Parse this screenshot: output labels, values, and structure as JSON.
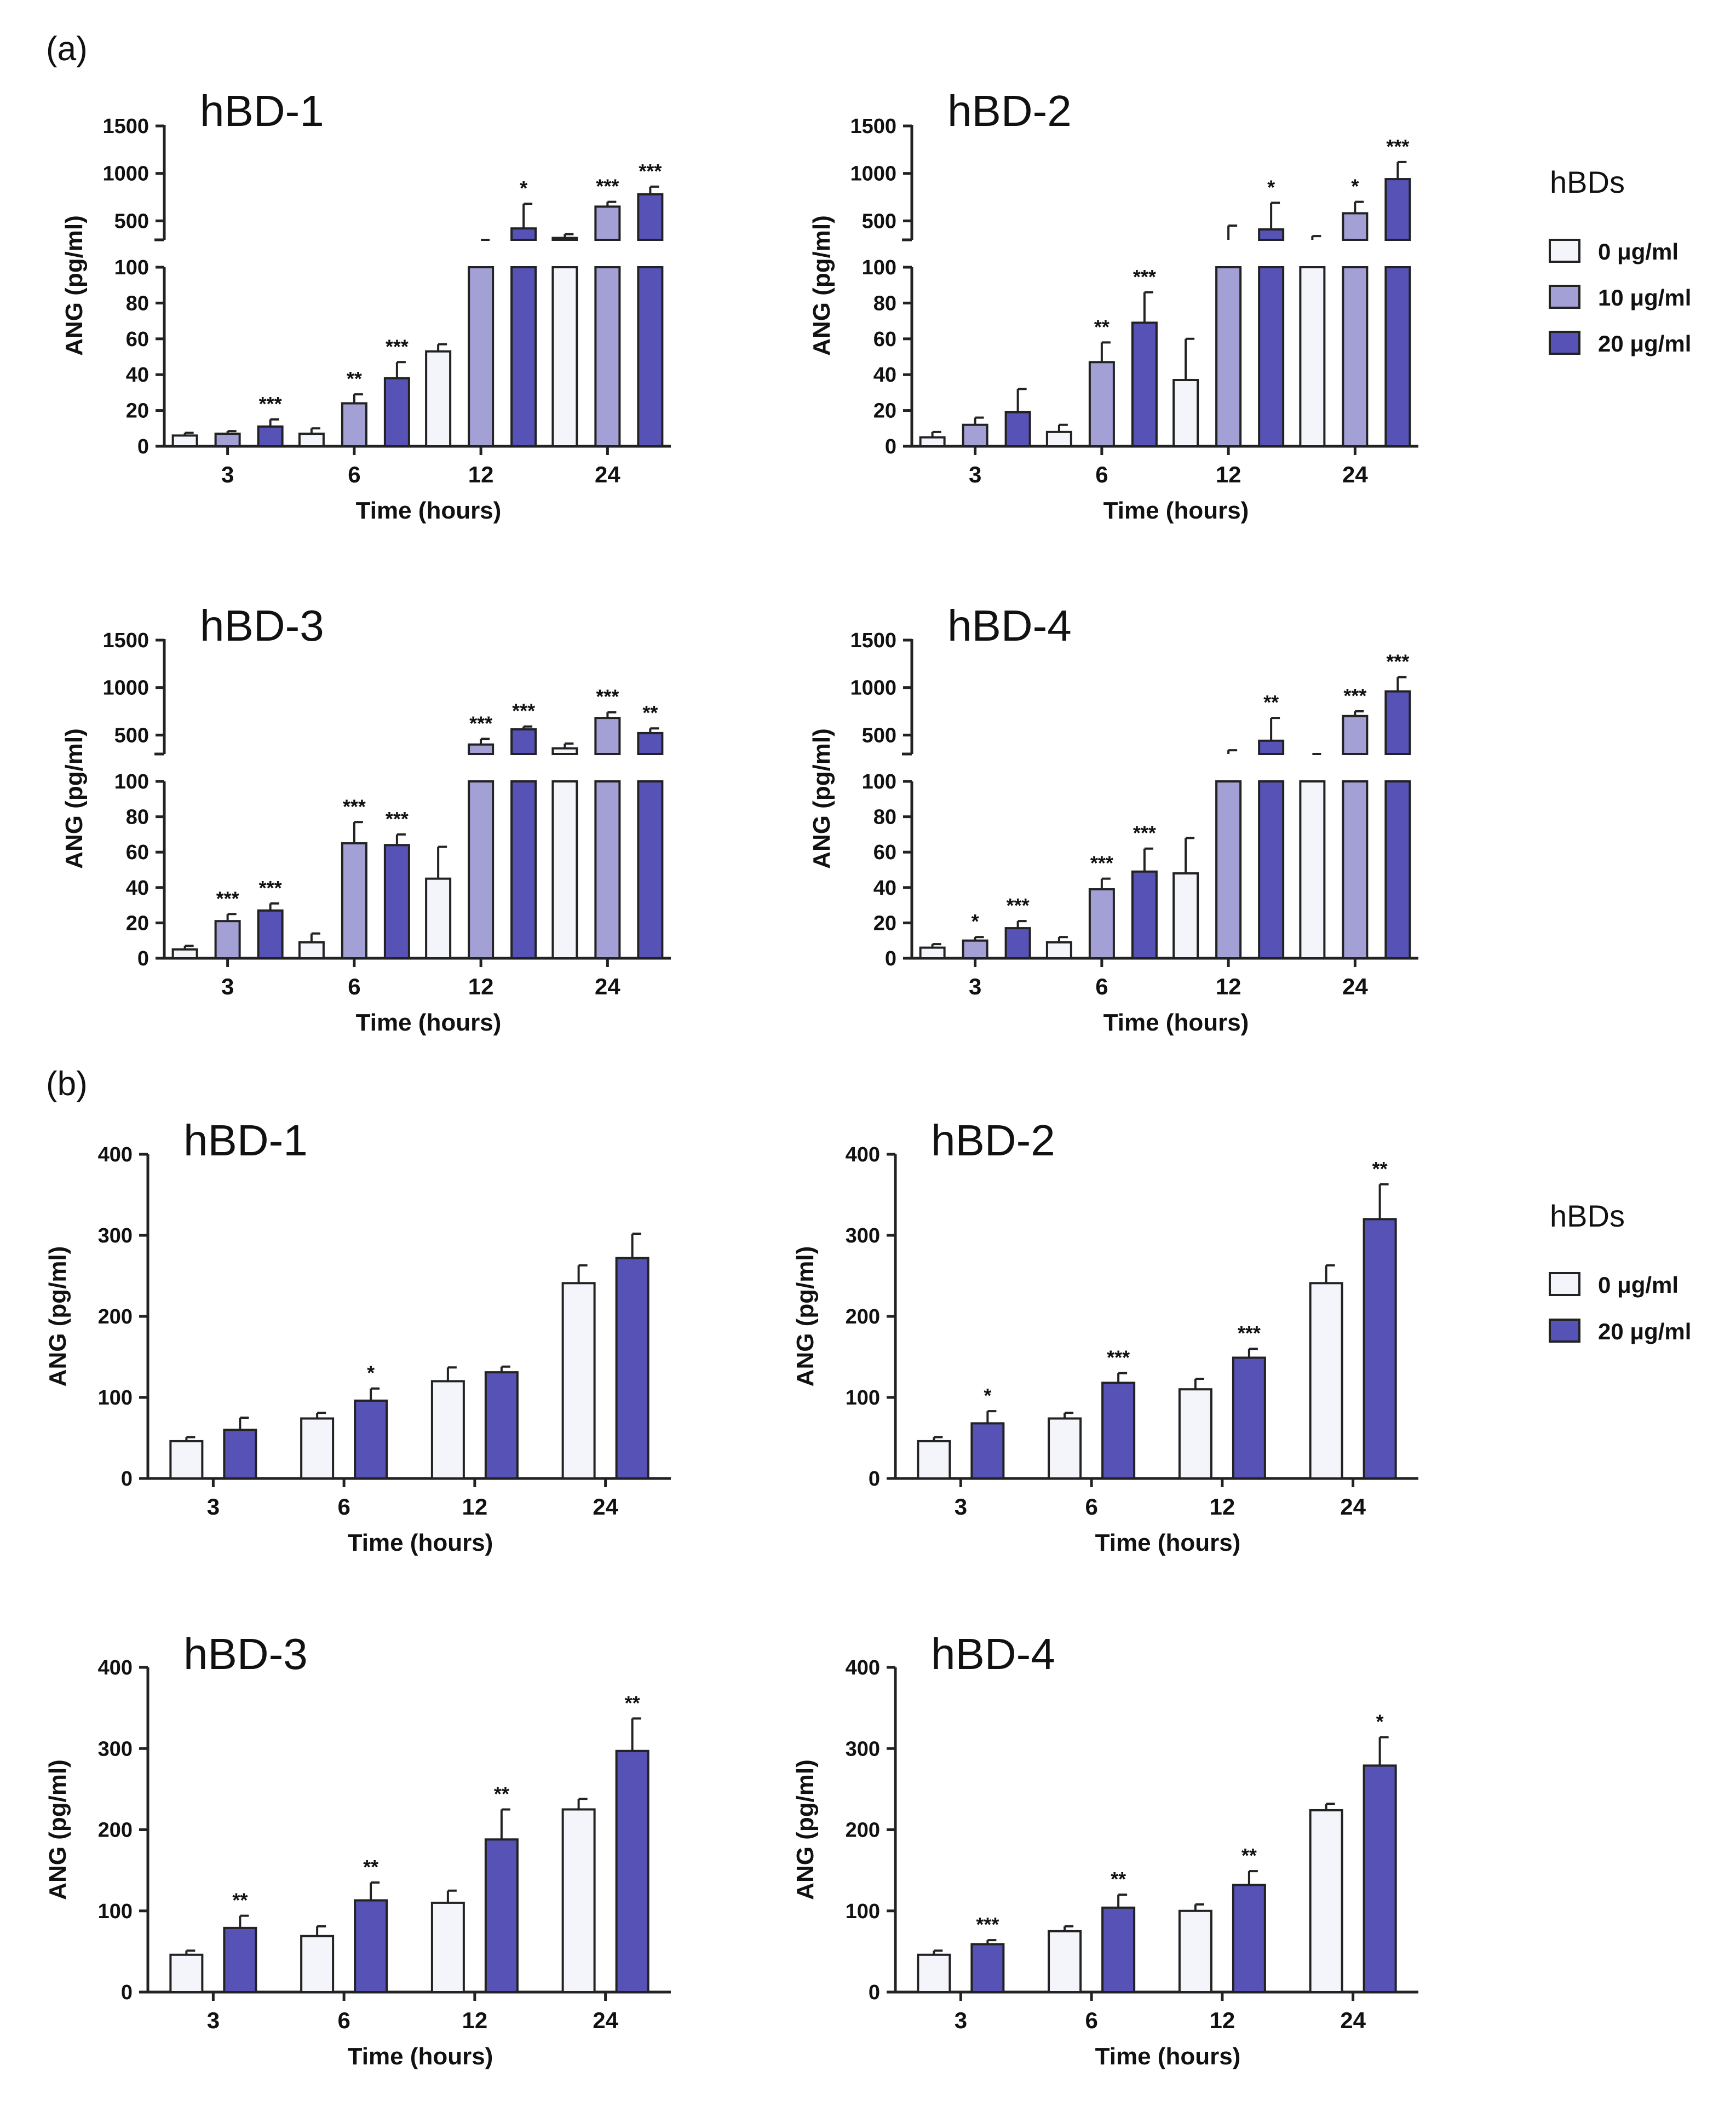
{
  "panels": [
    {
      "label": "(a)",
      "legend": {
        "title": "hBDs",
        "entries": [
          "0 μg/ml",
          "10 μg/ml",
          "20 μg/ml"
        ]
      }
    },
    {
      "label": "(b)",
      "legend": {
        "title": "hBDs",
        "entries": [
          "0 μg/ml",
          "20 μg/ml"
        ]
      }
    }
  ],
  "colors": {
    "0 μg/ml": "#f4f4fb",
    "10 μg/ml": "#a3a0d6",
    "20 μg/ml": "#5652b6",
    "edge": "#222222"
  },
  "chart_data": [
    {
      "type": "bar",
      "panel": "(a)",
      "title": "hBD-1",
      "categories": [
        "3",
        "6",
        "12",
        "24"
      ],
      "xlabel": "Time (hours)",
      "ylabel": "ANG (pg/ml)",
      "broken_axis": {
        "lower_ticks": [
          "0",
          "20",
          "40",
          "60",
          "80",
          "100"
        ],
        "upper_ticks": [
          "500",
          "1000",
          "1500"
        ],
        "lower_range": [
          0,
          100
        ],
        "upper_range": [
          300,
          1500
        ]
      },
      "series": [
        {
          "name": "0 μg/ml",
          "values": [
            6,
            7,
            53,
            320
          ],
          "errors": [
            1.5,
            3,
            4,
            40
          ],
          "sig": [
            "",
            "",
            "",
            ""
          ]
        },
        {
          "name": "10 μg/ml",
          "values": [
            7,
            24,
            140,
            650
          ],
          "errors": [
            1.5,
            5,
            70,
            50
          ],
          "sig": [
            "",
            "**",
            "",
            "***"
          ]
        },
        {
          "name": "20 μg/ml",
          "values": [
            11,
            38,
            420,
            780
          ],
          "errors": [
            4,
            9,
            260,
            80
          ],
          "sig": [
            "***",
            "***",
            "*",
            "***"
          ]
        }
      ]
    },
    {
      "type": "bar",
      "panel": "(a)",
      "title": "hBD-2",
      "categories": [
        "3",
        "6",
        "12",
        "24"
      ],
      "xlabel": "Time (hours)",
      "ylabel": "ANG (pg/ml)",
      "broken_axis": {
        "lower_ticks": [
          "0",
          "20",
          "40",
          "60",
          "80",
          "100"
        ],
        "upper_ticks": [
          "500",
          "1000",
          "1500"
        ],
        "lower_range": [
          0,
          100
        ],
        "upper_range": [
          300,
          1500
        ]
      },
      "series": [
        {
          "name": "0 μg/ml",
          "values": [
            5,
            8,
            37,
            300
          ],
          "errors": [
            3,
            4,
            23,
            40
          ],
          "sig": [
            "",
            "",
            "",
            ""
          ]
        },
        {
          "name": "10 μg/ml",
          "values": [
            12,
            47,
            300,
            580
          ],
          "errors": [
            4,
            11,
            150,
            120
          ],
          "sig": [
            "",
            "**",
            "",
            "*"
          ]
        },
        {
          "name": "20 μg/ml",
          "values": [
            19,
            69,
            410,
            940
          ],
          "errors": [
            13,
            17,
            280,
            180
          ],
          "sig": [
            "",
            "***",
            "*",
            "***"
          ]
        }
      ]
    },
    {
      "type": "bar",
      "panel": "(a)",
      "title": "hBD-3",
      "categories": [
        "3",
        "6",
        "12",
        "24"
      ],
      "xlabel": "Time (hours)",
      "ylabel": "ANG (pg/ml)",
      "broken_axis": {
        "lower_ticks": [
          "0",
          "20",
          "40",
          "60",
          "80",
          "100"
        ],
        "upper_ticks": [
          "500",
          "1000",
          "1500"
        ],
        "lower_range": [
          0,
          100
        ],
        "upper_range": [
          300,
          1500
        ]
      },
      "series": [
        {
          "name": "0 μg/ml",
          "values": [
            5,
            9,
            45,
            360
          ],
          "errors": [
            2,
            5,
            18,
            50
          ],
          "sig": [
            "",
            "",
            "",
            ""
          ]
        },
        {
          "name": "10 μg/ml",
          "values": [
            21,
            65,
            400,
            680
          ],
          "errors": [
            4,
            12,
            60,
            60
          ],
          "sig": [
            "***",
            "***",
            "***",
            "***"
          ]
        },
        {
          "name": "20 μg/ml",
          "values": [
            27,
            64,
            560,
            520
          ],
          "errors": [
            4,
            6,
            30,
            50
          ],
          "sig": [
            "***",
            "***",
            "***",
            "**"
          ]
        }
      ]
    },
    {
      "type": "bar",
      "panel": "(a)",
      "title": "hBD-4",
      "categories": [
        "3",
        "6",
        "12",
        "24"
      ],
      "xlabel": "Time (hours)",
      "ylabel": "ANG (pg/ml)",
      "broken_axis": {
        "lower_ticks": [
          "0",
          "20",
          "40",
          "60",
          "80",
          "100"
        ],
        "upper_ticks": [
          "500",
          "1000",
          "1500"
        ],
        "lower_range": [
          0,
          100
        ],
        "upper_range": [
          300,
          1500
        ]
      },
      "series": [
        {
          "name": "0 μg/ml",
          "values": [
            6,
            9,
            48,
            200
          ],
          "errors": [
            2,
            3,
            20,
            60
          ],
          "sig": [
            "",
            "",
            "",
            ""
          ]
        },
        {
          "name": "10 μg/ml",
          "values": [
            10,
            39,
            240,
            700
          ],
          "errors": [
            2,
            6,
            100,
            50
          ],
          "sig": [
            "*",
            "***",
            "",
            "***"
          ]
        },
        {
          "name": "20 μg/ml",
          "values": [
            17,
            49,
            440,
            960
          ],
          "errors": [
            4,
            13,
            240,
            150
          ],
          "sig": [
            "***",
            "***",
            "**",
            "***"
          ]
        }
      ]
    },
    {
      "type": "bar",
      "panel": "(b)",
      "title": "hBD-1",
      "categories": [
        "3",
        "6",
        "12",
        "24"
      ],
      "xlabel": "Time (hours)",
      "ylabel": "ANG (pg/ml)",
      "ylim": [
        0,
        400
      ],
      "yticks": [
        "0",
        "100",
        "200",
        "300",
        "400"
      ],
      "series": [
        {
          "name": "0 μg/ml",
          "values": [
            46,
            74,
            120,
            241
          ],
          "errors": [
            5,
            7,
            17,
            22
          ],
          "sig": [
            "",
            "",
            "",
            ""
          ]
        },
        {
          "name": "20 μg/ml",
          "values": [
            60,
            96,
            131,
            272
          ],
          "errors": [
            15,
            15,
            7,
            30
          ],
          "sig": [
            "",
            "*",
            "",
            ""
          ]
        }
      ]
    },
    {
      "type": "bar",
      "panel": "(b)",
      "title": "hBD-2",
      "categories": [
        "3",
        "6",
        "12",
        "24"
      ],
      "xlabel": "Time (hours)",
      "ylabel": "ANG (pg/ml)",
      "ylim": [
        0,
        400
      ],
      "yticks": [
        "0",
        "100",
        "200",
        "300",
        "400"
      ],
      "series": [
        {
          "name": "0 μg/ml",
          "values": [
            46,
            74,
            110,
            241
          ],
          "errors": [
            5,
            7,
            13,
            22
          ],
          "sig": [
            "",
            "",
            "",
            ""
          ]
        },
        {
          "name": "20 μg/ml",
          "values": [
            68,
            118,
            149,
            320
          ],
          "errors": [
            15,
            12,
            11,
            43
          ],
          "sig": [
            "*",
            "***",
            "***",
            "**"
          ]
        }
      ]
    },
    {
      "type": "bar",
      "panel": "(b)",
      "title": "hBD-3",
      "categories": [
        "3",
        "6",
        "12",
        "24"
      ],
      "xlabel": "Time (hours)",
      "ylabel": "ANG (pg/ml)",
      "ylim": [
        0,
        400
      ],
      "yticks": [
        "0",
        "100",
        "200",
        "300",
        "400"
      ],
      "series": [
        {
          "name": "0 μg/ml",
          "values": [
            46,
            69,
            110,
            225
          ],
          "errors": [
            5,
            12,
            15,
            13
          ],
          "sig": [
            "",
            "",
            "",
            ""
          ]
        },
        {
          "name": "20 μg/ml",
          "values": [
            79,
            113,
            188,
            297
          ],
          "errors": [
            15,
            22,
            37,
            40
          ],
          "sig": [
            "**",
            "**",
            "**",
            "**"
          ]
        }
      ]
    },
    {
      "type": "bar",
      "panel": "(b)",
      "title": "hBD-4",
      "categories": [
        "3",
        "6",
        "12",
        "24"
      ],
      "xlabel": "Time (hours)",
      "ylabel": "ANG (pg/ml)",
      "ylim": [
        0,
        400
      ],
      "yticks": [
        "0",
        "100",
        "200",
        "300",
        "400"
      ],
      "series": [
        {
          "name": "0 μg/ml",
          "values": [
            46,
            75,
            100,
            224
          ],
          "errors": [
            5,
            6,
            8,
            8
          ],
          "sig": [
            "",
            "",
            "",
            ""
          ]
        },
        {
          "name": "20 μg/ml",
          "values": [
            59,
            104,
            132,
            279
          ],
          "errors": [
            5,
            16,
            17,
            35
          ],
          "sig": [
            "***",
            "**",
            "**",
            "*"
          ]
        }
      ]
    }
  ]
}
